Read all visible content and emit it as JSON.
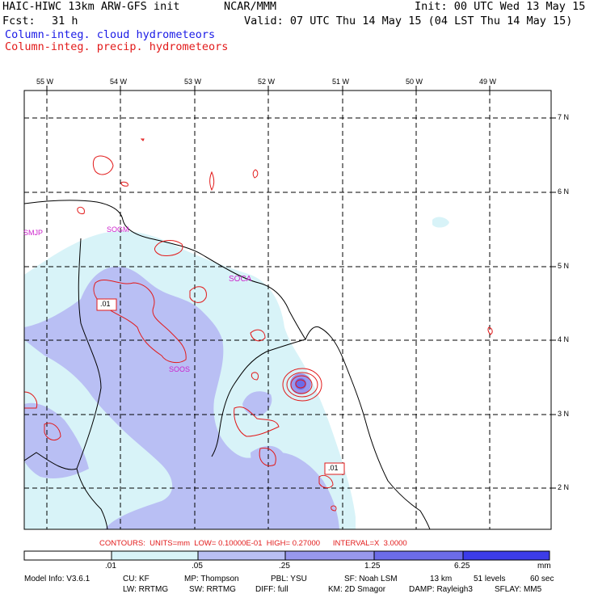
{
  "header": {
    "model_title": "HAIC-HIWC 13km ARW-GFS init",
    "org": "NCAR/MMM",
    "init": "Init: 00 UTC Wed 13 May 15",
    "fcst_label": "Fcst:",
    "fcst_value": "31 h",
    "valid": "Valid: 07 UTC Thu 14 May 15 (04 LST Thu 14 May 15)",
    "legend_cloud": "Column-integ. cloud hydrometeors",
    "legend_precip": "Column-integ. precip. hydrometeors"
  },
  "map": {
    "lon_labels": [
      "55 W",
      "54 W",
      "53 W",
      "52 W",
      "51 W",
      "50 W",
      "49 W"
    ],
    "lat_labels": [
      "7 N",
      "6 N",
      "5 N",
      "4 N",
      "3 N",
      "2 N"
    ],
    "stations": [
      "SMJP",
      "SOGM",
      "SOCA",
      "SOOS"
    ],
    "contour_labels": [
      ".01",
      ".01"
    ]
  },
  "contour_info": {
    "units": "CONTOURS:  UNITS=mm  LOW= 0.10000E-01  HIGH= 0.27000      INTERVAL=X  3.0000"
  },
  "colorbar": {
    "ticks": [
      ".01",
      ".05",
      ".25",
      "1.25",
      "6.25"
    ],
    "unit": "mm",
    "colors": [
      "#ffffff",
      "#d8f3f8",
      "#b9bff4",
      "#9898ee",
      "#6c6ce8",
      "#3c3ce8",
      "#1414e6"
    ]
  },
  "footer": {
    "line1": [
      "Model Info: V3.6.1",
      "CU: KF",
      "MP: Thompson",
      "PBL: YSU",
      "SF: Noah LSM",
      "13 km",
      "51 levels",
      "60 sec"
    ],
    "line2": [
      "LW: RRTMG",
      "SW: RRTMG",
      "DIFF: full",
      "KM: 2D Smagor",
      "DAMP: Rayleigh3",
      "SFLAY: MM5"
    ]
  }
}
